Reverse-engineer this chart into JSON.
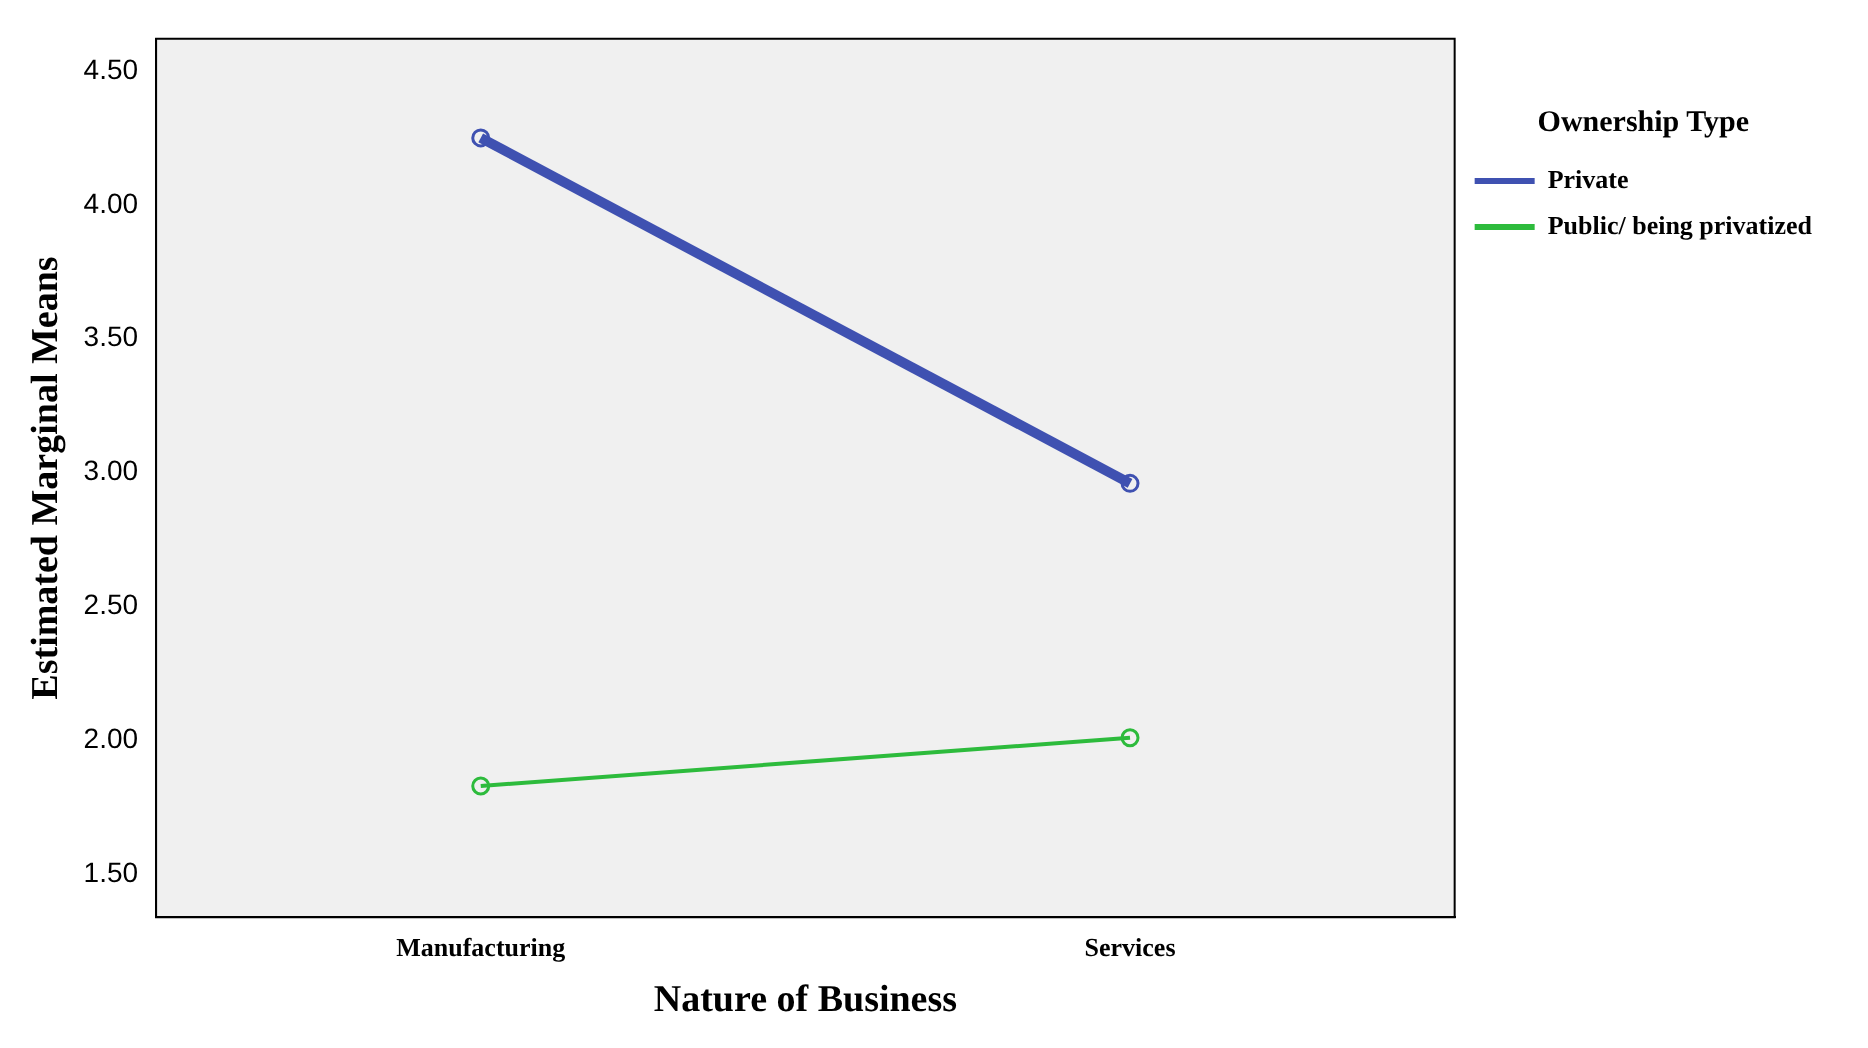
{
  "chart_data": {
    "type": "line",
    "xlabel": "Nature of Business",
    "ylabel": "Estimated Marginal Means",
    "legend_title": "Ownership Type",
    "legend": "right",
    "marker": "circle",
    "grid": false,
    "categories": [
      "Manufacturing",
      "Services"
    ],
    "series": [
      {
        "name": "Private",
        "color": "#3f51b1",
        "values": [
          4.25,
          2.96
        ]
      },
      {
        "name": "Public/ being privatized",
        "color": "#2dbb3c",
        "values": [
          1.83,
          2.01
        ]
      }
    ],
    "ylim": [
      1.34,
      4.62
    ],
    "yticks": [
      {
        "value": 1.5,
        "label": "1.50"
      },
      {
        "value": 2,
        "label": "2.00"
      },
      {
        "value": 2.5,
        "label": "2.50"
      },
      {
        "value": 3,
        "label": "3.00"
      },
      {
        "value": 3.5,
        "label": "3.50"
      },
      {
        "value": 4,
        "label": "4.00"
      },
      {
        "value": 4.5,
        "label": "4.50"
      }
    ]
  }
}
